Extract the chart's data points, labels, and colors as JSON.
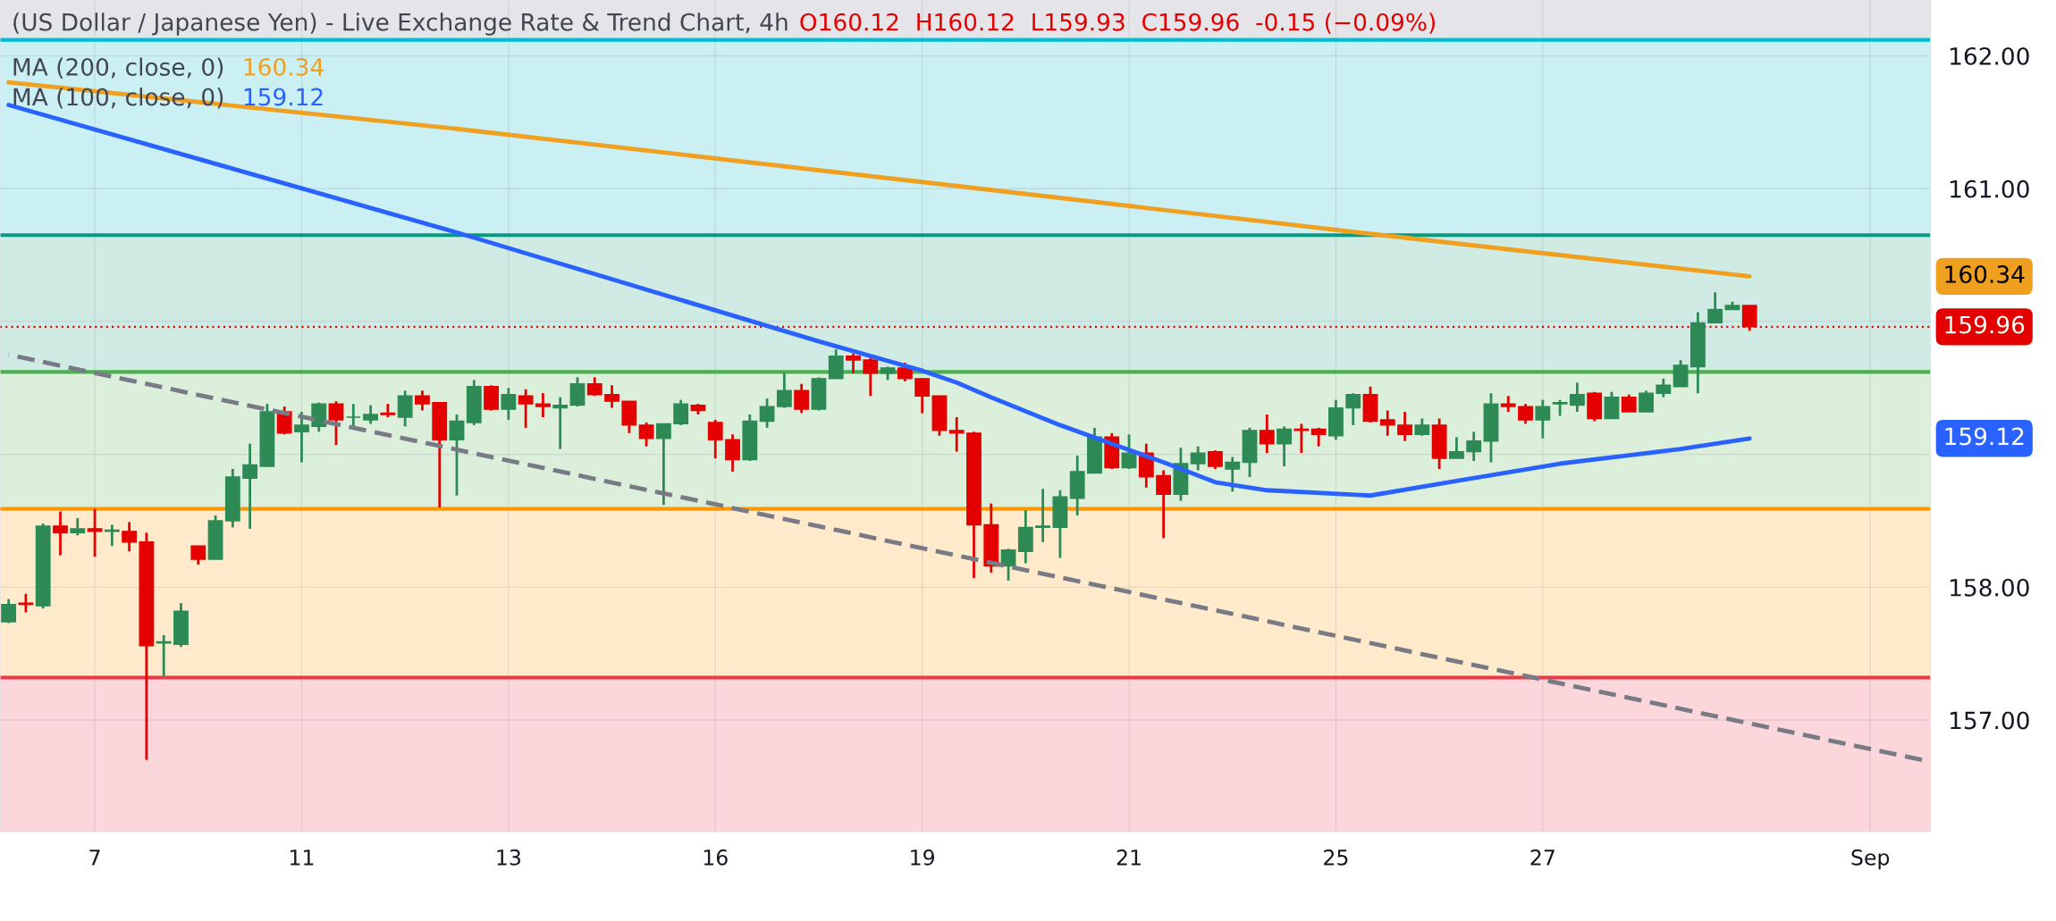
{
  "chart_data": {
    "type": "candlestick",
    "title": "(US Dollar / Japanese Yen) - Live Exchange Rate & Trend Chart, 4h",
    "subtitle": "O160.12  H160.12  L159.93  C159.96  -0.15 (−0.09%)",
    "categories": [
      null,
      null,
      null,
      null,
      null,
      "7",
      null,
      null,
      null,
      null,
      null,
      null,
      null,
      null,
      null,
      null,
      null,
      "11",
      null,
      null,
      null,
      null,
      null,
      null,
      null,
      null,
      null,
      null,
      null,
      "13",
      null,
      null,
      null,
      null,
      null,
      null,
      null,
      null,
      null,
      null,
      null,
      "16",
      null,
      null,
      null,
      null,
      null,
      null,
      null,
      null,
      null,
      null,
      null,
      "19",
      null,
      null,
      null,
      null,
      null,
      null,
      null,
      null,
      null,
      null,
      null,
      "21",
      null,
      null,
      null,
      null,
      null,
      null,
      null,
      null,
      null,
      null,
      null,
      "25",
      null,
      null,
      null,
      null,
      null,
      null,
      null,
      null,
      null,
      null,
      null,
      "27",
      null,
      null,
      null,
      null,
      null,
      null,
      null,
      null,
      null,
      null,
      null,
      null,
      null,
      null,
      null,
      null,
      null,
      null,
      "Sep",
      null,
      null,
      null
    ],
    "ohlc": [
      [
        157.74,
        157.91,
        157.73,
        157.87
      ],
      [
        157.88,
        157.95,
        157.81,
        157.87
      ],
      [
        157.86,
        158.48,
        157.84,
        158.46
      ],
      [
        158.46,
        158.57,
        158.24,
        158.41
      ],
      [
        158.41,
        158.52,
        158.39,
        158.44
      ],
      [
        158.44,
        158.59,
        158.23,
        158.42
      ],
      [
        158.42,
        158.47,
        158.31,
        158.43
      ],
      [
        158.42,
        158.49,
        158.27,
        158.34
      ],
      [
        158.34,
        158.41,
        156.7,
        157.56
      ],
      [
        157.58,
        157.64,
        157.33,
        157.59
      ],
      [
        157.57,
        157.88,
        157.55,
        157.82
      ],
      [
        158.31,
        158.31,
        158.17,
        158.21
      ],
      [
        158.21,
        158.54,
        158.21,
        158.5
      ],
      [
        158.5,
        158.89,
        158.45,
        158.83
      ],
      [
        158.82,
        159.08,
        158.44,
        158.92
      ],
      [
        158.91,
        159.38,
        158.91,
        159.32
      ],
      [
        159.32,
        159.36,
        159.15,
        159.16
      ],
      [
        159.17,
        159.32,
        158.94,
        159.22
      ],
      [
        159.21,
        159.39,
        159.17,
        159.38
      ],
      [
        159.38,
        159.4,
        159.07,
        159.26
      ],
      [
        159.28,
        159.38,
        159.19,
        159.28
      ],
      [
        159.26,
        159.37,
        159.23,
        159.3
      ],
      [
        159.31,
        159.38,
        159.28,
        159.3
      ],
      [
        159.28,
        159.48,
        159.21,
        159.44
      ],
      [
        159.44,
        159.48,
        159.33,
        159.38
      ],
      [
        159.39,
        159.39,
        158.6,
        159.11
      ],
      [
        159.11,
        159.3,
        158.69,
        159.25
      ],
      [
        159.24,
        159.56,
        159.22,
        159.51
      ],
      [
        159.51,
        159.52,
        159.33,
        159.34
      ],
      [
        159.34,
        159.5,
        159.26,
        159.45
      ],
      [
        159.44,
        159.49,
        159.2,
        159.38
      ],
      [
        159.38,
        159.46,
        159.28,
        159.36
      ],
      [
        159.35,
        159.43,
        159.04,
        159.37
      ],
      [
        159.37,
        159.58,
        159.36,
        159.53
      ],
      [
        159.53,
        159.58,
        159.44,
        159.45
      ],
      [
        159.45,
        159.52,
        159.35,
        159.4
      ],
      [
        159.4,
        159.4,
        159.16,
        159.22
      ],
      [
        159.22,
        159.24,
        159.06,
        159.12
      ],
      [
        159.12,
        159.23,
        158.62,
        159.23
      ],
      [
        159.23,
        159.41,
        159.22,
        159.38
      ],
      [
        159.37,
        159.38,
        159.3,
        159.33
      ],
      [
        159.24,
        159.26,
        158.97,
        159.11
      ],
      [
        159.11,
        159.15,
        158.87,
        158.96
      ],
      [
        158.96,
        159.3,
        158.95,
        159.25
      ],
      [
        159.25,
        159.42,
        159.2,
        159.36
      ],
      [
        159.36,
        159.61,
        159.35,
        159.48
      ],
      [
        159.48,
        159.53,
        159.31,
        159.34
      ],
      [
        159.34,
        159.58,
        159.33,
        159.57
      ],
      [
        159.57,
        159.79,
        159.57,
        159.74
      ],
      [
        159.74,
        159.76,
        159.61,
        159.71
      ],
      [
        159.71,
        159.74,
        159.44,
        159.61
      ],
      [
        159.61,
        159.66,
        159.56,
        159.65
      ],
      [
        159.65,
        159.69,
        159.55,
        159.57
      ],
      [
        159.57,
        159.57,
        159.31,
        159.44
      ],
      [
        159.44,
        159.44,
        159.14,
        159.18
      ],
      [
        159.18,
        159.28,
        159.02,
        159.16
      ],
      [
        159.16,
        159.17,
        158.07,
        158.47
      ],
      [
        158.47,
        158.63,
        158.11,
        158.16
      ],
      [
        158.16,
        158.29,
        158.05,
        158.28
      ],
      [
        158.27,
        158.58,
        158.18,
        158.45
      ],
      [
        158.45,
        158.74,
        158.34,
        158.46
      ],
      [
        158.45,
        158.73,
        158.22,
        158.68
      ],
      [
        158.67,
        158.99,
        158.54,
        158.87
      ],
      [
        158.86,
        159.2,
        158.86,
        159.13
      ],
      [
        159.13,
        159.16,
        158.89,
        158.9
      ],
      [
        158.9,
        159.15,
        158.89,
        159.01
      ],
      [
        159.01,
        159.08,
        158.75,
        158.83
      ],
      [
        158.84,
        158.88,
        158.37,
        158.7
      ],
      [
        158.7,
        159.05,
        158.65,
        158.93
      ],
      [
        158.93,
        159.06,
        158.88,
        159.01
      ],
      [
        159.02,
        159.03,
        158.89,
        158.91
      ],
      [
        158.89,
        158.98,
        158.72,
        158.94
      ],
      [
        158.94,
        159.2,
        158.83,
        159.18
      ],
      [
        159.18,
        159.3,
        159.01,
        159.08
      ],
      [
        159.08,
        159.21,
        158.91,
        159.19
      ],
      [
        159.19,
        159.23,
        159.01,
        159.18
      ],
      [
        159.19,
        159.2,
        159.06,
        159.15
      ],
      [
        159.14,
        159.41,
        159.11,
        159.35
      ],
      [
        159.35,
        159.46,
        159.22,
        159.45
      ],
      [
        159.45,
        159.51,
        159.24,
        159.25
      ],
      [
        159.26,
        159.33,
        159.14,
        159.22
      ],
      [
        159.22,
        159.32,
        159.1,
        159.15
      ],
      [
        159.15,
        159.27,
        159.14,
        159.22
      ],
      [
        159.22,
        159.27,
        158.89,
        158.97
      ],
      [
        158.97,
        159.13,
        158.97,
        159.02
      ],
      [
        159.02,
        159.17,
        158.95,
        159.1
      ],
      [
        159.1,
        159.46,
        158.94,
        159.38
      ],
      [
        159.38,
        159.44,
        159.32,
        159.36
      ],
      [
        159.36,
        159.38,
        159.23,
        159.26
      ],
      [
        159.26,
        159.41,
        159.12,
        159.36
      ],
      [
        159.38,
        159.41,
        159.29,
        159.39
      ],
      [
        159.37,
        159.54,
        159.32,
        159.45
      ],
      [
        159.46,
        159.47,
        159.25,
        159.27
      ],
      [
        159.27,
        159.47,
        159.27,
        159.43
      ],
      [
        159.43,
        159.45,
        159.32,
        159.32
      ],
      [
        159.32,
        159.48,
        159.32,
        159.46
      ],
      [
        159.46,
        159.57,
        159.43,
        159.52
      ],
      [
        159.51,
        159.71,
        159.51,
        159.67
      ],
      [
        159.66,
        160.07,
        159.46,
        159.99
      ],
      [
        159.99,
        160.22,
        159.99,
        160.09
      ],
      [
        160.09,
        160.15,
        160.09,
        160.12
      ],
      [
        160.12,
        160.12,
        159.93,
        159.96
      ],
      null,
      null,
      null,
      null,
      null,
      null,
      null,
      null,
      null,
      null
    ],
    "colors": [
      "#2d8a55",
      "#e50000",
      "#2d8a55",
      "#e50000",
      "#2d8a55",
      "#e50000",
      "#2d8a55",
      "#e50000",
      "#e50000",
      "#2d8a55",
      "#2d8a55",
      "#e50000",
      "#2d8a55",
      "#2d8a55",
      "#2d8a55",
      "#2d8a55",
      "#e50000",
      "#2d8a55",
      "#2d8a55",
      "#e50000",
      "#2d8a55",
      "#2d8a55",
      "#e50000",
      "#2d8a55",
      "#e50000",
      "#e50000",
      "#2d8a55",
      "#2d8a55",
      "#e50000",
      "#2d8a55",
      "#e50000",
      "#e50000",
      "#2d8a55",
      "#2d8a55",
      "#e50000",
      "#e50000",
      "#e50000",
      "#e50000",
      "#2d8a55",
      "#2d8a55",
      "#e50000",
      "#e50000",
      "#e50000",
      "#2d8a55",
      "#2d8a55",
      "#2d8a55",
      "#e50000",
      "#2d8a55",
      "#2d8a55",
      "#e50000",
      "#e50000",
      "#2d8a55",
      "#e50000",
      "#e50000",
      "#e50000",
      "#e50000",
      "#e50000",
      "#e50000",
      "#2d8a55",
      "#2d8a55",
      "#2d8a55",
      "#2d8a55",
      "#2d8a55",
      "#2d8a55",
      "#e50000",
      "#2d8a55",
      "#e50000",
      "#e50000",
      "#2d8a55",
      "#2d8a55",
      "#e50000",
      "#2d8a55",
      "#2d8a55",
      "#e50000",
      "#2d8a55",
      "#e50000",
      "#e50000",
      "#2d8a55",
      "#2d8a55",
      "#e50000",
      "#e50000",
      "#e50000",
      "#2d8a55",
      "#e50000",
      "#2d8a55",
      "#2d8a55",
      "#2d8a55",
      "#e50000",
      "#e50000",
      "#2d8a55",
      "#2d8a55",
      "#2d8a55",
      "#e50000",
      "#2d8a55",
      "#e50000",
      "#2d8a55",
      "#2d8a55",
      "#2d8a55",
      "#2d8a55",
      "#2d8a55",
      "#2d8a55",
      "#e50000",
      null,
      null,
      null,
      null,
      null,
      null,
      null,
      null,
      null,
      null
    ],
    "series": [
      {
        "type": "line",
        "name": "MA (200, close, 0)",
        "color": "#f0a020",
        "values": [
          161.8,
          null,
          null,
          null,
          null,
          null,
          null,
          null,
          null,
          null,
          null,
          null,
          null,
          null,
          null,
          null,
          null,
          null,
          null,
          null,
          null,
          null,
          null,
          null,
          null,
          null,
          161.45,
          null,
          null,
          null,
          null,
          null,
          null,
          null,
          null,
          null,
          null,
          null,
          null,
          null,
          null,
          null,
          null,
          null,
          null,
          null,
          null,
          null,
          null,
          null,
          null,
          null,
          null,
          161.05,
          null,
          null,
          null,
          null,
          null,
          null,
          null,
          null,
          null,
          null,
          null,
          null,
          null,
          null,
          null,
          null,
          null,
          null,
          null,
          null,
          null,
          null,
          null,
          null,
          null,
          160.66,
          null,
          null,
          null,
          null,
          null,
          null,
          null,
          null,
          null,
          null,
          null,
          null,
          null,
          null,
          null,
          null,
          null,
          null,
          null,
          null,
          null,
          160.34,
          null,
          null,
          null,
          null,
          null,
          null,
          null,
          null,
          null,
          null
        ]
      },
      {
        "type": "line",
        "name": "MA (100, close, 0)",
        "color": "#2962ff",
        "values": [
          161.63,
          null,
          null,
          null,
          null,
          null,
          null,
          null,
          null,
          null,
          null,
          null,
          null,
          161.15,
          null,
          null,
          null,
          null,
          null,
          null,
          null,
          null,
          null,
          null,
          null,
          null,
          160.67,
          null,
          null,
          null,
          null,
          null,
          null,
          null,
          null,
          null,
          null,
          null,
          null,
          null,
          null,
          null,
          null,
          null,
          null,
          null,
          null,
          159.85,
          null,
          null,
          null,
          null,
          null,
          159.63,
          null,
          159.54,
          null,
          159.43,
          null,
          null,
          null,
          159.22,
          null,
          null,
          159.08,
          null,
          null,
          158.94,
          null,
          null,
          158.79,
          null,
          null,
          158.73,
          null,
          null,
          null,
          null,
          null,
          158.69,
          null,
          null,
          null,
          null,
          158.8,
          null,
          null,
          null,
          null,
          null,
          158.93,
          null,
          null,
          null,
          null,
          null,
          null,
          159.04,
          null,
          null,
          null,
          159.12,
          null,
          null,
          null,
          null,
          null,
          null,
          null,
          null,
          null,
          null
        ]
      },
      {
        "type": "line",
        "color": "#787b86",
        "line_style": "dashed",
        "values": [
          159.75,
          null,
          null,
          null,
          null,
          null,
          null,
          null,
          null,
          null,
          null,
          null,
          null,
          null,
          null,
          null,
          null,
          null,
          null,
          null,
          null,
          null,
          null,
          null,
          null,
          null,
          null,
          null,
          null,
          null,
          null,
          null,
          null,
          null,
          null,
          null,
          null,
          null,
          null,
          null,
          null,
          null,
          null,
          null,
          null,
          null,
          null,
          null,
          null,
          null,
          null,
          null,
          null,
          null,
          null,
          null,
          null,
          null,
          null,
          null,
          null,
          null,
          null,
          null,
          null,
          null,
          null,
          null,
          null,
          null,
          null,
          null,
          null,
          null,
          null,
          null,
          null,
          null,
          null,
          null,
          null,
          null,
          null,
          null,
          null,
          null,
          null,
          null,
          null,
          null,
          null,
          null,
          null,
          null,
          null,
          null,
          null,
          null,
          null,
          null,
          null,
          null,
          null,
          null,
          null,
          null,
          null,
          null,
          null,
          null,
          null,
          156.7
        ]
      }
    ],
    "annotations": [
      "160.34",
      "159.12"
    ],
    "ylim": [
      156.16,
      162.42
    ],
    "yticks": [
      {
        "value": 157,
        "label": "157.00"
      },
      {
        "value": 158,
        "label": "158.00"
      },
      {
        "value": 159,
        "label": null
      },
      {
        "value": 160,
        "label": null
      },
      {
        "value": 161,
        "label": "161.00"
      },
      {
        "value": 162,
        "label": "162.00"
      }
    ],
    "ref_lines": [
      {
        "axis": "y",
        "value": 162.12,
        "color": "#00bcd4"
      },
      {
        "axis": "y",
        "value": 160.65,
        "color": "#089981"
      },
      {
        "axis": "y",
        "value": 159.62,
        "color": "#4caf50"
      },
      {
        "axis": "y",
        "value": 158.59,
        "color": "#ff9800"
      },
      {
        "axis": "y",
        "value": 157.32,
        "color": "#f23645"
      },
      {
        "axis": "y",
        "value": 159.96,
        "label": "159.96",
        "color": "#e50000",
        "line_style": "dotted"
      }
    ],
    "bands": [
      {
        "axis": "y",
        "from": 162.12,
        "to": 162.42,
        "color": "#e5e5e9"
      },
      {
        "axis": "y",
        "from": 160.65,
        "to": 162.12,
        "color": "#caf0f3"
      },
      {
        "axis": "y",
        "from": 159.62,
        "to": 160.65,
        "color": "#d0ebe4"
      },
      {
        "axis": "y",
        "from": 158.59,
        "to": 159.62,
        "color": "#dcefdb"
      },
      {
        "axis": "y",
        "from": 157.32,
        "to": 158.59,
        "color": "#ffeacb"
      },
      {
        "axis": "y",
        "from": 156.16,
        "to": 157.32,
        "color": "#fbd6da"
      }
    ],
    "grid": true,
    "legend": "top left"
  }
}
